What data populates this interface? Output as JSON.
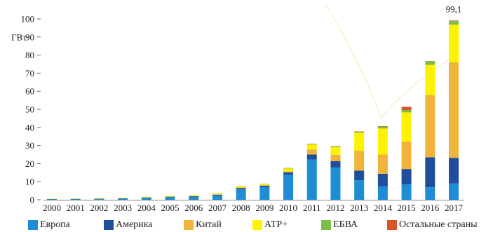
{
  "chart_data": {
    "type": "bar",
    "stacked": true,
    "unit_label": "ГВт",
    "categories": [
      "2000",
      "2001",
      "2002",
      "2003",
      "2004",
      "2005",
      "2006",
      "2007",
      "2008",
      "2009",
      "2010",
      "2011",
      "2012",
      "2013",
      "2014",
      "2015",
      "2016",
      "2017"
    ],
    "ylim": [
      0,
      100
    ],
    "yticks": [
      0,
      10,
      20,
      30,
      40,
      50,
      60,
      70,
      80,
      90,
      100
    ],
    "series": [
      {
        "name": "Европа",
        "color": "#1f8dd6",
        "values": [
          0.3,
          0.4,
          0.5,
          0.6,
          1.1,
          1.4,
          1.6,
          2.2,
          5.7,
          7.0,
          13.8,
          22.3,
          17.8,
          10.8,
          7.4,
          8.5,
          6.9,
          9.0
        ]
      },
      {
        "name": "Америка",
        "color": "#1f4e9c",
        "values": [
          0.1,
          0.1,
          0.1,
          0.2,
          0.2,
          0.3,
          0.4,
          0.6,
          0.8,
          0.8,
          1.4,
          2.7,
          3.6,
          5.3,
          7.0,
          8.5,
          16.6,
          14.2
        ]
      },
      {
        "name": "Китай",
        "color": "#f0b43a",
        "values": [
          0.0,
          0.0,
          0.0,
          0.0,
          0.0,
          0.0,
          0.1,
          0.2,
          0.3,
          0.2,
          0.5,
          2.8,
          3.5,
          11.0,
          10.6,
          15.2,
          34.5,
          52.8
        ]
      },
      {
        "name": "АТР+",
        "color": "#fff200",
        "values": [
          0.2,
          0.2,
          0.3,
          0.3,
          0.4,
          0.4,
          0.5,
          0.5,
          0.6,
          0.8,
          1.6,
          2.8,
          4.2,
          10.0,
          14.4,
          16.1,
          16.6,
          20.8
        ]
      },
      {
        "name": "ЕБВА",
        "color": "#7cbf46",
        "values": [
          0.0,
          0.0,
          0.0,
          0.0,
          0.0,
          0.0,
          0.0,
          0.1,
          0.1,
          0.1,
          0.3,
          0.3,
          0.4,
          0.6,
          1.1,
          1.3,
          1.9,
          2.0
        ]
      },
      {
        "name": "Остальные страны",
        "color": "#d9542b",
        "values": [
          0.0,
          0.0,
          0.0,
          0.0,
          0.0,
          0.0,
          0.0,
          0.0,
          0.0,
          0.0,
          0.0,
          0.1,
          0.1,
          0.1,
          0.2,
          1.8,
          0.2,
          0.3
        ]
      }
    ],
    "annotations": [
      {
        "category": "2017",
        "text": "99,1"
      }
    ],
    "legend_position": "bottom",
    "grid": false
  }
}
